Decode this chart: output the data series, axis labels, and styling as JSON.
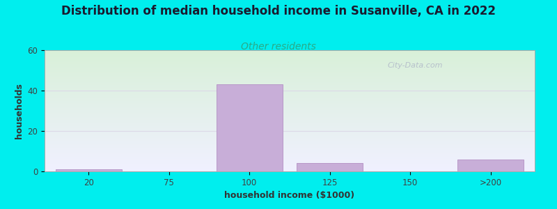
{
  "title": "Distribution of median household income in Susanville, CA in 2022",
  "subtitle": "Other residents",
  "xlabel": "household income ($1000)",
  "ylabel": "households",
  "bar_labels": [
    "20",
    "75",
    "100",
    "125",
    "150",
    ">200"
  ],
  "bar_values": [
    1,
    0,
    43,
    4,
    0,
    6
  ],
  "bar_color": "#c8aed8",
  "bar_edge_color": "#b898c8",
  "bg_color": "#00eeee",
  "plot_bg_top_color": "#f0f0ff",
  "plot_bg_bottom_color": "#d8f0d8",
  "ylim": [
    0,
    60
  ],
  "yticks": [
    0,
    20,
    40,
    60
  ],
  "grid_color": "#ddd8e8",
  "title_fontsize": 12,
  "subtitle_fontsize": 10,
  "subtitle_color": "#2aaa88",
  "label_fontsize": 9,
  "tick_fontsize": 8.5,
  "watermark": "City-Data.com",
  "watermark_color": "#b0b8c8",
  "spine_color": "#aaaaaa"
}
